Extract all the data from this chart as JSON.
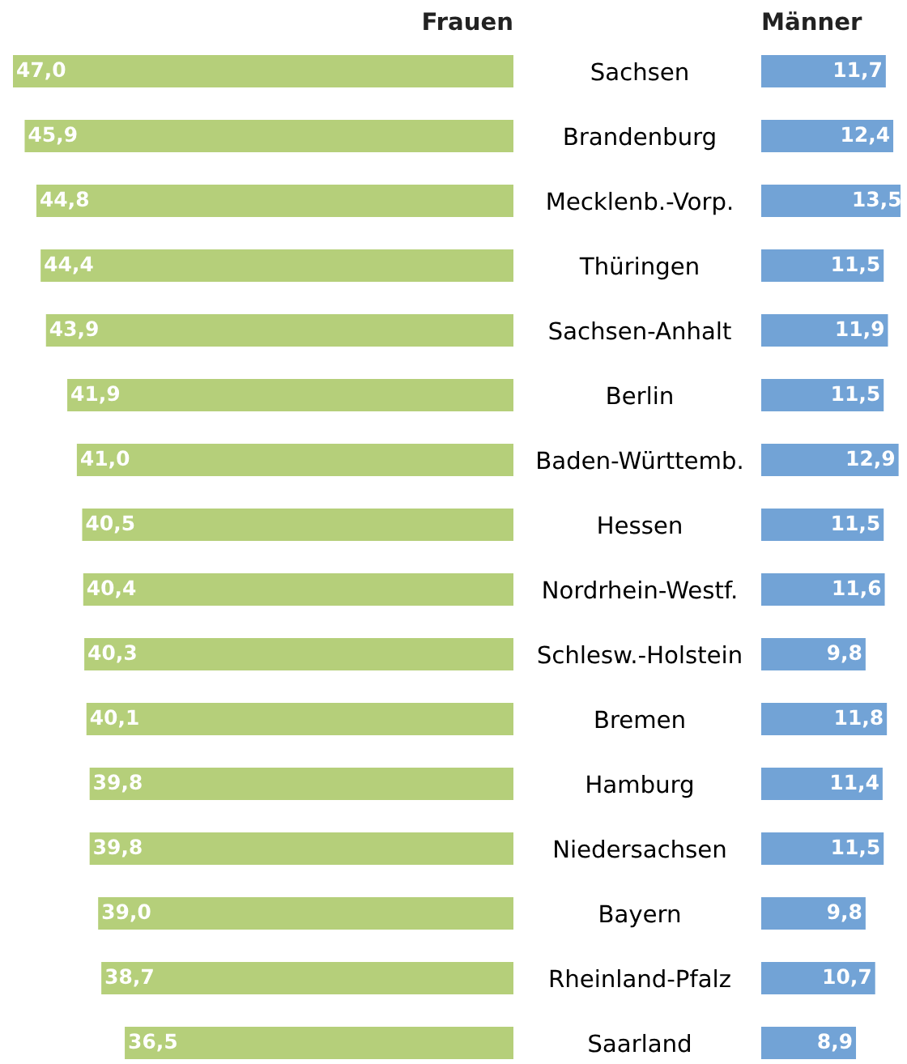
{
  "chart_data": [
    {
      "type": "bar",
      "orientation": "horizontal",
      "title": "Frauen",
      "categories": [
        "Sachsen",
        "Brandenburg",
        "Mecklenb.-Vorp.",
        "Thüringen",
        "Sachsen-Anhalt",
        "Berlin",
        "Baden-Württemb.",
        "Hessen",
        "Nordrhein-Westf.",
        "Schlesw.-Holstein",
        "Bremen",
        "Hamburg",
        "Niedersachsen",
        "Bayern",
        "Rheinland-Pfalz",
        "Saarland"
      ],
      "color": "#b5cf7a",
      "values": [
        47.0,
        45.9,
        44.8,
        44.4,
        43.9,
        41.9,
        41.0,
        40.5,
        40.4,
        40.3,
        40.1,
        39.8,
        39.8,
        39.0,
        38.7,
        36.5
      ],
      "value_labels": [
        "47,0",
        "45,9",
        "44,8",
        "44,4",
        "43,9",
        "41,9",
        "41,0",
        "40,5",
        "40,4",
        "40,3",
        "40,1",
        "39,8",
        "39,8",
        "39,0",
        "38,7",
        "36,5"
      ],
      "tick_labels": "y"
    },
    {
      "type": "bar",
      "orientation": "horizontal",
      "title": "Männer",
      "categories": [
        null,
        null,
        null,
        null,
        null,
        null,
        null,
        null,
        null,
        null,
        null,
        null,
        null,
        null,
        null,
        null
      ],
      "color": "#72a3d6",
      "values": [
        11.7,
        12.4,
        13.5,
        11.5,
        11.9,
        11.5,
        12.9,
        11.5,
        11.6,
        9.8,
        11.8,
        11.4,
        11.5,
        9.8,
        10.7,
        8.9
      ],
      "value_labels": [
        "11,7",
        "12,4",
        "13,5",
        "11,5",
        "11,9",
        "11,5",
        "12,9",
        "11,5",
        "11,6",
        "9,8",
        "11,8",
        "11,4",
        "11,5",
        "9,8",
        "10,7",
        "8,9"
      ],
      "tick_labels": false
    }
  ]
}
